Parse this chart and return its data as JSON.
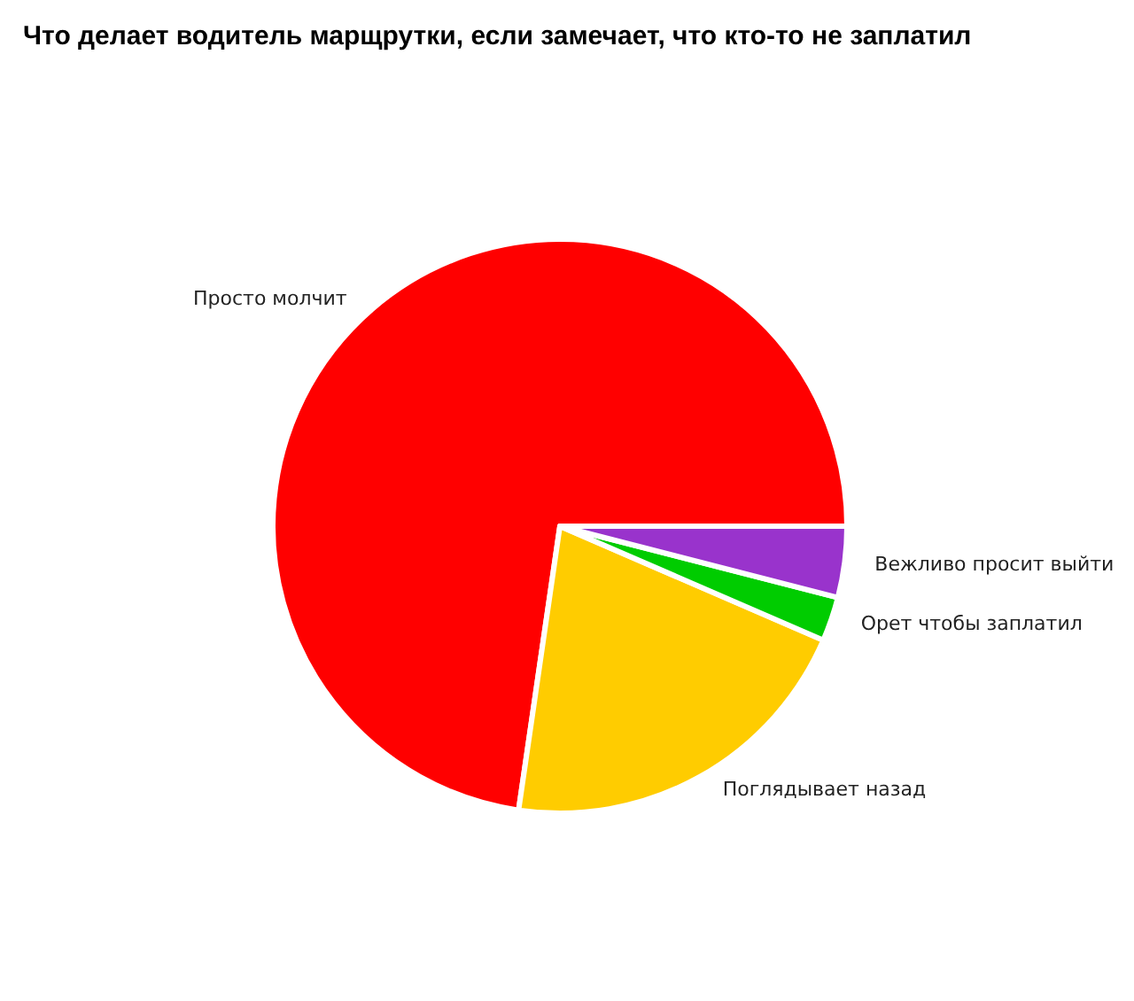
{
  "chart_data": {
    "type": "pie",
    "title": "Что делает водитель марщрутки, если замечает, что кто-то не заплатил",
    "categories": [
      "Просто молчит",
      "Поглядывает назад",
      "Орет чтобы заплатил",
      "Вежливо просит выйти"
    ],
    "values": [
      72.7,
      20.8,
      2.5,
      4.0
    ],
    "colors": [
      "#ff0000",
      "#ffcc00",
      "#00cc00",
      "#9933cc"
    ],
    "legend": false
  }
}
